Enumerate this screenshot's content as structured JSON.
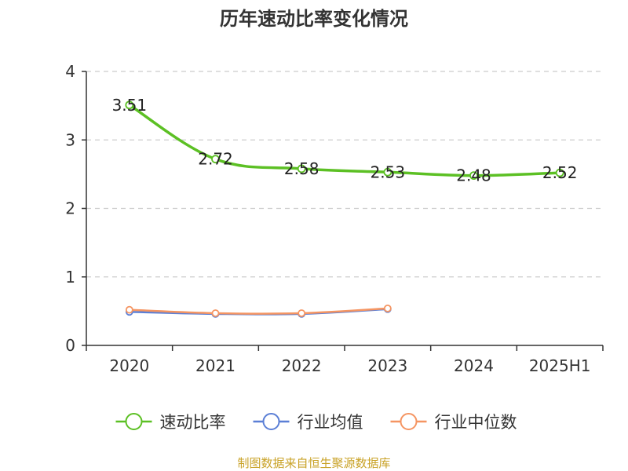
{
  "chart_data": {
    "type": "line",
    "title": "历年速动比率变化情况",
    "categories": [
      "2020",
      "2021",
      "2022",
      "2023",
      "2024",
      "2025H1"
    ],
    "ylim": [
      0,
      4
    ],
    "yticks": [
      0,
      1,
      2,
      3,
      4
    ],
    "grid": true,
    "legend_position": "bottom",
    "series": [
      {
        "name": "速动比率",
        "color": "#5cc024",
        "values": [
          3.51,
          2.72,
          2.58,
          2.53,
          2.48,
          2.52
        ],
        "labels": [
          "3.51",
          "2.72",
          "2.58",
          "2.53",
          "2.48",
          "2.52"
        ],
        "show_labels": true
      },
      {
        "name": "行业均值",
        "color": "#5b7fd6",
        "values": [
          0.49,
          0.46,
          0.46,
          0.53,
          null,
          null
        ],
        "show_labels": false
      },
      {
        "name": "行业中位数",
        "color": "#f59562",
        "values": [
          0.52,
          0.47,
          0.47,
          0.54,
          null,
          null
        ],
        "show_labels": false
      }
    ]
  },
  "source_text": "制图数据来自恒生聚源数据库"
}
